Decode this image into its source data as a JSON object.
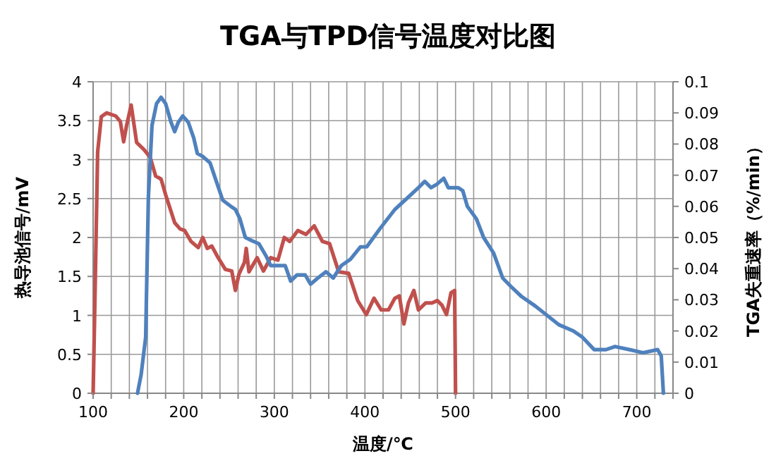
{
  "chart_data": {
    "type": "line",
    "title": "TGA与TPD信号温度对比图",
    "xlabel": "温度/℃",
    "ylabel": "热导池信号/mV",
    "y2label": "TGA失重速率（%/min）",
    "xlim": [
      100,
      740
    ],
    "xticks": [
      100,
      {
        "value": 120,
        "label": null
      },
      {
        "value": 140,
        "label": null
      },
      {
        "value": 160,
        "label": null
      },
      {
        "value": 180,
        "label": null
      },
      200,
      {
        "value": 220,
        "label": null
      },
      {
        "value": 240,
        "label": null
      },
      {
        "value": 260,
        "label": null
      },
      {
        "value": 280,
        "label": null
      },
      300,
      {
        "value": 320,
        "label": null
      },
      {
        "value": 340,
        "label": null
      },
      {
        "value": 360,
        "label": null
      },
      {
        "value": 380,
        "label": null
      },
      400,
      {
        "value": 420,
        "label": null
      },
      {
        "value": 440,
        "label": null
      },
      {
        "value": 460,
        "label": null
      },
      {
        "value": 480,
        "label": null
      },
      500,
      {
        "value": 520,
        "label": null
      },
      {
        "value": 540,
        "label": null
      },
      {
        "value": 560,
        "label": null
      },
      {
        "value": 580,
        "label": null
      },
      600,
      {
        "value": 620,
        "label": null
      },
      {
        "value": 640,
        "label": null
      },
      {
        "value": 660,
        "label": null
      },
      {
        "value": 680,
        "label": null
      },
      700,
      {
        "value": 720,
        "label": null
      },
      {
        "value": 740,
        "label": null
      }
    ],
    "ylim": [
      0,
      4
    ],
    "yticks": [
      0,
      0.5,
      1,
      1.5,
      2,
      2.5,
      3,
      3.5,
      4
    ],
    "y2lim": [
      0,
      0.1
    ],
    "y2ticks": [
      0,
      0.01,
      0.02,
      0.03,
      0.04,
      0.05,
      0.06,
      0.07,
      0.08,
      0.09,
      0.1
    ],
    "grid": true,
    "marker": "none",
    "line_style": "solid",
    "series": [
      {
        "color": "#c0504d",
        "x": [
          100,
          101.6,
          105,
          109,
          115,
          125,
          130,
          133.7,
          136.8,
          142,
          148,
          156,
          163,
          169,
          175,
          180,
          190,
          196,
          201,
          208,
          216,
          221,
          226,
          231,
          238,
          246,
          253,
          257,
          261,
          267,
          269,
          272,
          281,
          288,
          296,
          304,
          311,
          317,
          326,
          335,
          344,
          353,
          361,
          371,
          382,
          392,
          401.5,
          410,
          418,
          426,
          433,
          438,
          443,
          448,
          454,
          459,
          467,
          474,
          480,
          485,
          490,
          495,
          499,
          500
        ],
        "values": [
          0,
          0.95,
          3.1,
          3.55,
          3.6,
          3.56,
          3.49,
          3.23,
          3.43,
          3.7,
          3.22,
          3.13,
          3.03,
          2.79,
          2.75,
          2.55,
          2.19,
          2.11,
          2.09,
          1.95,
          1.87,
          2.0,
          1.86,
          1.89,
          1.74,
          1.59,
          1.57,
          1.32,
          1.53,
          1.68,
          1.86,
          1.56,
          1.74,
          1.57,
          1.74,
          1.71,
          2.0,
          1.95,
          2.09,
          2.04,
          2.15,
          1.95,
          1.92,
          1.56,
          1.54,
          1.19,
          1.01,
          1.22,
          1.07,
          1.07,
          1.22,
          1.25,
          0.89,
          1.16,
          1.32,
          1.07,
          1.16,
          1.16,
          1.19,
          1.13,
          1.01,
          1.29,
          1.32,
          0
        ]
      },
      {
        "color": "#4f81bd",
        "axis": "y2",
        "x": [
          149,
          153,
          158,
          161,
          165,
          170,
          175,
          180,
          186,
          190,
          194,
          199,
          205,
          211,
          215,
          221,
          229,
          236,
          243,
          252,
          257,
          262,
          268,
          275,
          283,
          291,
          296,
          304,
          312,
          318,
          325,
          334,
          340,
          348,
          357,
          365,
          374,
          384,
          395,
          402,
          417,
          433,
          448,
          459,
          466,
          473,
          479,
          487,
          492,
          503,
          508,
          513,
          523,
          531,
          542,
          552,
          562,
          573,
          588,
          601,
          614,
          630,
          640,
          653,
          666,
          676,
          692,
          707,
          723,
          727,
          729.4
        ],
        "values": [
          0,
          0.006,
          0.018,
          0.063,
          0.086,
          0.093,
          0.095,
          0.093,
          0.087,
          0.084,
          0.087,
          0.089,
          0.087,
          0.082,
          0.077,
          0.076,
          0.074,
          0.068,
          0.062,
          0.06,
          0.059,
          0.056,
          0.05,
          0.049,
          0.048,
          0.044,
          0.041,
          0.041,
          0.041,
          0.036,
          0.038,
          0.038,
          0.035,
          0.037,
          0.039,
          0.037,
          0.041,
          0.043,
          0.047,
          0.047,
          0.053,
          0.059,
          0.063,
          0.066,
          0.068,
          0.066,
          0.067,
          0.069,
          0.066,
          0.066,
          0.065,
          0.06,
          0.056,
          0.05,
          0.045,
          0.037,
          0.034,
          0.031,
          0.028,
          0.025,
          0.022,
          0.02,
          0.018,
          0.014,
          0.014,
          0.015,
          0.014,
          0.013,
          0.014,
          0.012,
          0
        ]
      }
    ]
  }
}
